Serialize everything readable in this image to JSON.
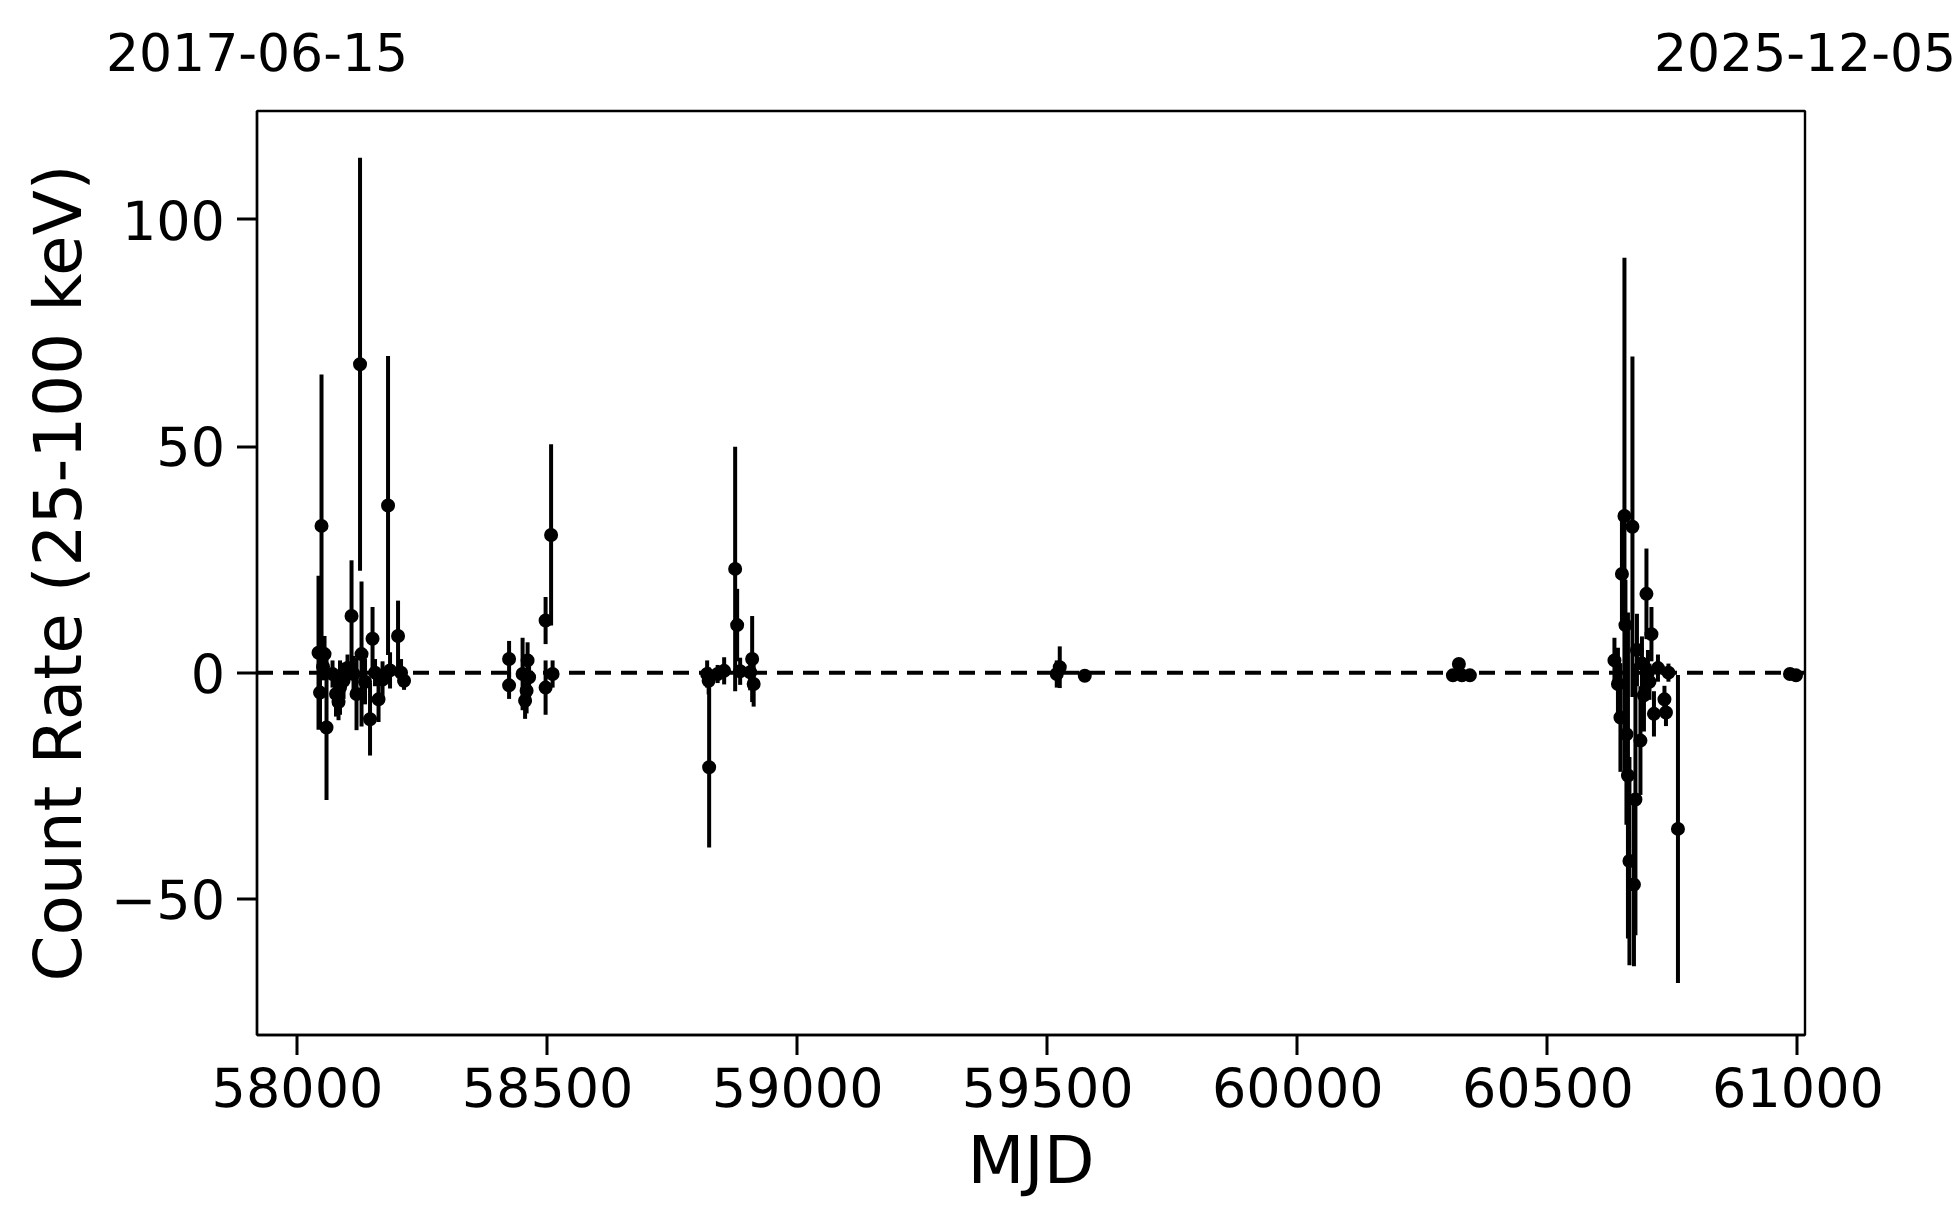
{
  "chart_data": {
    "type": "scatter",
    "xlabel": "MJD",
    "ylabel": "Count Rate (25-100 keV)",
    "xlim": [
      57919,
      61014
    ],
    "xticks": [
      58000,
      58500,
      59000,
      59500,
      60000,
      60500,
      61000
    ],
    "ylim": [
      -80,
      124
    ],
    "yticks": [
      {
        "value": -50,
        "label": "−50"
      },
      0,
      50,
      100
    ],
    "x2lim": [
      "2017-06-15",
      "2025-12-05"
    ],
    "x2ticks": [
      "2017-06-15",
      "2025-12-05"
    ],
    "marker": "circle",
    "ref_lines": [
      {
        "axis": "y",
        "value": 0,
        "color": "#000000",
        "line_style": "dashed"
      }
    ],
    "series": [
      {
        "color": "#000000",
        "x": [
          58042,
          58045,
          58048,
          58051,
          58054,
          58058,
          58070,
          58077,
          58082,
          58085,
          58092,
          58100,
          58108,
          58112,
          58118,
          58125,
          58128,
          58135,
          58145,
          58150,
          58155,
          58162,
          58170,
          58181,
          58185,
          58201,
          58207,
          58213,
          58423,
          58423,
          58450,
          58455,
          58458,
          58460,
          58463,
          58496,
          58496,
          58507,
          58510,
          58819,
          58822,
          58823,
          58840,
          58853,
          58875,
          58879,
          58885,
          58905,
          58909,
          58912,
          59518,
          59524,
          59574,
          60310,
          60322,
          60328,
          60344,
          60633,
          60640,
          60645,
          60648,
          60653,
          60655,
          60657,
          60660,
          60663,
          60669,
          60672,
          60675,
          60678,
          60685,
          60688,
          60692,
          60697,
          60700,
          60703,
          60707,
          60712,
          60720,
          60733,
          60736,
          60741,
          60760,
          60984,
          60996
        ],
        "values": [
          4.4,
          -4.4,
          32.4,
          1.3,
          4.1,
          -12.1,
          -0.3,
          -4.7,
          -6.5,
          -3.3,
          -1.8,
          1.0,
          12.5,
          -0.3,
          -4.7,
          68.1,
          4.1,
          -2.0,
          -10.3,
          7.5,
          0.0,
          -5.9,
          -1.5,
          36.9,
          0.5,
          8.1,
          0.0,
          -1.8,
          3.0,
          -2.8,
          -0.3,
          -6.2,
          -4.0,
          2.7,
          -1.0,
          11.5,
          -3.3,
          30.4,
          -0.3,
          -0.3,
          -1.8,
          -20.9,
          -0.3,
          0.4,
          22.9,
          10.5,
          0.3,
          0.1,
          3.0,
          -2.5,
          -0.3,
          1.2,
          -0.7,
          -0.6,
          1.9,
          -0.6,
          -0.6,
          2.7,
          -2.5,
          -9.9,
          21.8,
          34.6,
          10.5,
          -13.6,
          -22.7,
          -41.6,
          32.2,
          -46.8,
          -28.0,
          5.0,
          -15.0,
          2.0,
          -5.0,
          17.4,
          0.0,
          -2.0,
          8.5,
          -9.1,
          1.0,
          -5.9,
          -8.8,
          0.0,
          -34.5,
          -0.3,
          -0.6
        ],
        "errors": [
          17,
          8,
          33.4,
          3,
          4,
          16,
          3,
          5,
          4,
          6,
          4,
          3,
          12.3,
          4,
          8,
          45.6,
          16,
          5,
          8,
          7,
          3,
          5,
          4,
          33,
          4,
          7.8,
          3,
          2,
          4,
          3,
          8,
          4,
          5,
          4,
          5,
          5.2,
          6,
          20,
          3,
          3,
          3,
          17.7,
          2,
          3,
          27,
          8,
          3,
          4,
          9.5,
          5,
          3,
          4.6,
          1,
          1,
          1,
          1,
          1,
          5,
          8,
          12,
          12,
          57,
          10,
          20,
          36,
          23,
          37.6,
          18,
          30,
          8,
          12,
          6,
          8,
          10,
          5,
          4,
          6,
          5,
          3,
          3,
          3,
          2,
          34,
          1,
          1
        ]
      }
    ]
  }
}
